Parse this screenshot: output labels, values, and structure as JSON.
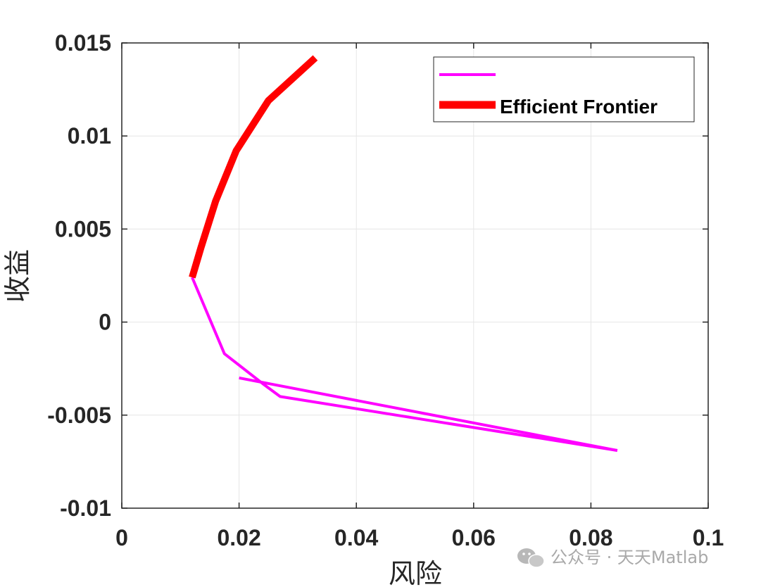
{
  "chart_data": {
    "type": "line",
    "title": "",
    "xlabel": "风险",
    "ylabel": "收益",
    "xlim": [
      0,
      0.1
    ],
    "ylim": [
      -0.01,
      0.015
    ],
    "xticks": [
      0,
      0.02,
      0.04,
      0.06,
      0.08,
      0.1
    ],
    "xtick_labels": [
      "0",
      "0.02",
      "0.04",
      "0.06",
      "0.08",
      "0.1"
    ],
    "yticks": [
      -0.01,
      -0.005,
      0,
      0.005,
      0.01,
      0.015
    ],
    "ytick_labels": [
      "-0.01",
      "-0.005",
      "0",
      "0.005",
      "0.01",
      "0.015"
    ],
    "grid": true,
    "legend_placement": "top-right",
    "series": [
      {
        "name": "",
        "color": "#ff00ff",
        "x": [
          0.0845,
          0.027,
          0.024,
          0.0175,
          0.012
        ],
        "y": [
          -0.0069,
          -0.004,
          -0.0033,
          -0.0017,
          0.0024
        ]
      },
      {
        "name": "",
        "color": "#ff00ff",
        "x": [
          0.02,
          0.0845
        ],
        "y": [
          -0.003,
          -0.0069
        ]
      },
      {
        "name": "Efficient Frontier",
        "color": "#ff0000",
        "x": [
          0.012,
          0.0135,
          0.016,
          0.0195,
          0.025,
          0.033
        ],
        "y": [
          0.0024,
          0.004,
          0.0065,
          0.0092,
          0.0119,
          0.0142
        ]
      }
    ]
  },
  "watermark": {
    "text": "公众号 · 天天Matlab"
  }
}
